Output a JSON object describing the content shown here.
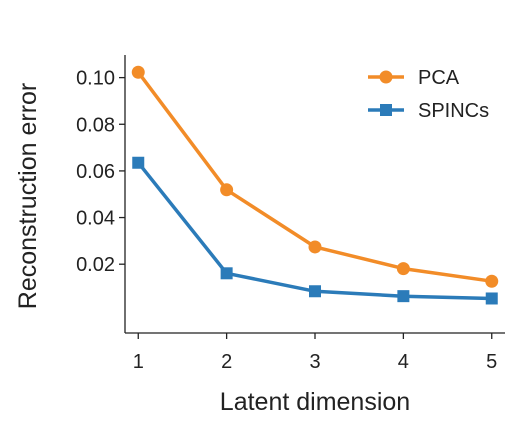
{
  "chart_data": {
    "type": "line",
    "title": "",
    "xlabel": "Latent dimension",
    "ylabel": "Reconstruction error",
    "x": [
      1,
      2,
      3,
      4,
      5
    ],
    "xticks": [
      "1",
      "2",
      "3",
      "4",
      "5"
    ],
    "xlim": [
      0.85,
      5.15
    ],
    "ylim": [
      -0.0095,
      0.1097
    ],
    "yticks": [
      "0.02",
      "0.04",
      "0.06",
      "0.08",
      "0.10"
    ],
    "ytick_values": [
      0.02,
      0.04,
      0.06,
      0.08,
      0.1
    ],
    "grid": false,
    "legend_position": "top-right",
    "series": [
      {
        "name": "PCA",
        "marker": "circle",
        "color": "#F28C28",
        "values": [
          0.1023,
          0.0519,
          0.0274,
          0.0181,
          0.0127
        ]
      },
      {
        "name": "SPINCs",
        "marker": "square",
        "color": "#2B7BB9",
        "values": [
          0.0635,
          0.0161,
          0.0084,
          0.0063,
          0.0053
        ]
      }
    ]
  }
}
